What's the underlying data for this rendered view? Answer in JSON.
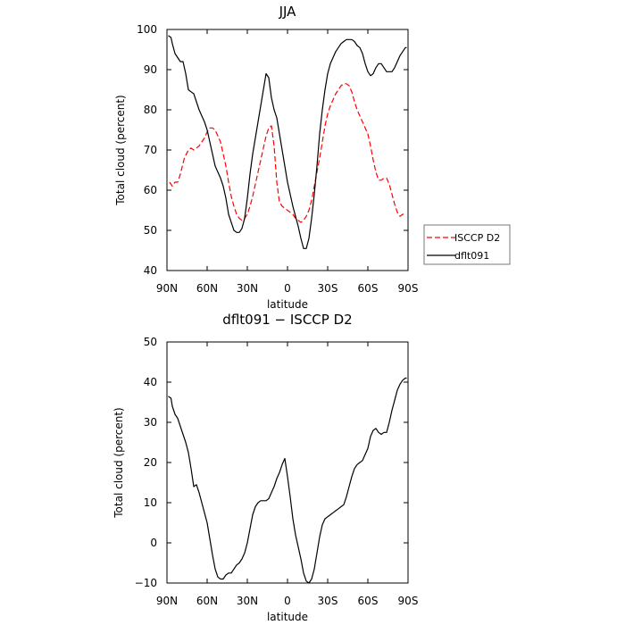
{
  "chart_data": [
    {
      "type": "line",
      "title": "JJA",
      "xlabel": "latitude",
      "ylabel": "Total cloud (percent)",
      "xlim": [
        90,
        -90
      ],
      "ylim": [
        40,
        100
      ],
      "xticks": [
        90,
        60,
        30,
        0,
        -30,
        -60,
        -90
      ],
      "xtick_labels": [
        "90N",
        "60N",
        "30N",
        "0",
        "30S",
        "60S",
        "90S"
      ],
      "yticks": [
        40,
        50,
        60,
        70,
        80,
        90,
        100
      ],
      "ytick_labels": [
        "40",
        "50",
        "60",
        "70",
        "80",
        "90",
        "100"
      ],
      "legend_position": "right",
      "series": [
        {
          "name": "ISCCP D2",
          "color": "#ff0000",
          "dash": "dashed",
          "x": [
            88,
            86,
            84,
            82,
            80,
            77,
            74,
            72,
            70,
            68,
            66,
            64,
            62,
            60,
            58,
            56,
            54,
            52,
            50,
            48,
            46,
            44,
            42,
            40,
            38,
            36,
            34,
            32,
            30,
            28,
            26,
            24,
            22,
            20,
            18,
            16,
            14,
            12,
            10,
            8,
            6,
            4,
            2,
            0,
            -2,
            -4,
            -6,
            -8,
            -10,
            -12,
            -14,
            -16,
            -18,
            -20,
            -22,
            -24,
            -26,
            -28,
            -30,
            -32,
            -34,
            -36,
            -38,
            -40,
            -42,
            -44,
            -46,
            -48,
            -50,
            -52,
            -54,
            -56,
            -58,
            -60,
            -62,
            -64,
            -66,
            -68,
            -70,
            -72,
            -74,
            -76,
            -78,
            -80,
            -82,
            -84,
            -86,
            -88
          ],
          "y": [
            62,
            61,
            62,
            62,
            64,
            68,
            70,
            70.5,
            70,
            70.5,
            71,
            72,
            73,
            74.5,
            75.5,
            75.5,
            75,
            73.5,
            72,
            69,
            66,
            62,
            58.5,
            56,
            54,
            53,
            52.5,
            53,
            54,
            56,
            58.5,
            61.5,
            64.5,
            67.5,
            70.5,
            73.5,
            75.5,
            76,
            71,
            62,
            57,
            56,
            55.5,
            55,
            54.5,
            54,
            53,
            52.5,
            52,
            52.5,
            53.5,
            55,
            57.5,
            61,
            64.5,
            68,
            72,
            76,
            79,
            81,
            82.5,
            84,
            85,
            86,
            86.5,
            86.5,
            86,
            84.5,
            82,
            80,
            78.5,
            77,
            75.5,
            74,
            71,
            67.5,
            64.5,
            62.5,
            62.5,
            63,
            63,
            61.5,
            59,
            56.5,
            54.5,
            53.5,
            54,
            54
          ]
        },
        {
          "name": "dflt091",
          "color": "#000000",
          "dash": "solid",
          "x": [
            89,
            87,
            86,
            84,
            82,
            80,
            78,
            76,
            74,
            72,
            70,
            68,
            66,
            64,
            62,
            60,
            58,
            56,
            54,
            52,
            50,
            48,
            46,
            44,
            42,
            40,
            38,
            36,
            34,
            32,
            30,
            28,
            26,
            24,
            22,
            20,
            18,
            16,
            14,
            12,
            10,
            8,
            6,
            4,
            2,
            0,
            -2,
            -4,
            -6,
            -8,
            -10,
            -12,
            -14,
            -16,
            -18,
            -20,
            -22,
            -24,
            -26,
            -28,
            -30,
            -32,
            -34,
            -36,
            -38,
            -40,
            -42,
            -44,
            -46,
            -48,
            -50,
            -52,
            -54,
            -56,
            -58,
            -60,
            -62,
            -64,
            -66,
            -68,
            -70,
            -72,
            -74,
            -76,
            -78,
            -80,
            -82,
            -84,
            -86,
            -88,
            -89
          ],
          "y": [
            98.5,
            98,
            96.5,
            94,
            93,
            92,
            92,
            89,
            85,
            84.5,
            84,
            82,
            80,
            78.5,
            77,
            75,
            72,
            69,
            66,
            64.5,
            63,
            61,
            58,
            54,
            52,
            50,
            49.5,
            49.5,
            50.5,
            53,
            58,
            64,
            69,
            73,
            77,
            81,
            85,
            89,
            88,
            83,
            80,
            78,
            74,
            70,
            66,
            62,
            59,
            56,
            53.5,
            51,
            48,
            45.5,
            45.5,
            48,
            53,
            59,
            66,
            74,
            80,
            85,
            89,
            91.5,
            93,
            94.5,
            95.5,
            96.5,
            97,
            97.5,
            97.5,
            97.5,
            97,
            96,
            95.5,
            94,
            91.5,
            89.5,
            88.5,
            89,
            90.5,
            91.5,
            91.5,
            90.5,
            89.5,
            89.5,
            89.5,
            90.5,
            92,
            93.5,
            94.5,
            95.5,
            95.5
          ]
        }
      ]
    },
    {
      "type": "line",
      "title": "dflt091 − ISCCP D2",
      "xlabel": "latitude",
      "ylabel": "Total cloud (percent)",
      "xlim": [
        90,
        -90
      ],
      "ylim": [
        -10,
        50
      ],
      "xticks": [
        90,
        60,
        30,
        0,
        -30,
        -60,
        -90
      ],
      "xtick_labels": [
        "90N",
        "60N",
        "30N",
        "0",
        "30S",
        "60S",
        "90S"
      ],
      "yticks": [
        -10,
        0,
        10,
        20,
        30,
        40,
        50
      ],
      "ytick_labels": [
        "−10",
        "0",
        "10",
        "20",
        "30",
        "40",
        "50"
      ],
      "series": [
        {
          "color": "#000000",
          "dash": "solid",
          "x": [
            89,
            87,
            86,
            84,
            82,
            80,
            78,
            76,
            74,
            72,
            70,
            68,
            66,
            64,
            62,
            60,
            58,
            56,
            54,
            52,
            50,
            48,
            46,
            44,
            42,
            40,
            38,
            36,
            34,
            32,
            30,
            28,
            26,
            24,
            22,
            20,
            18,
            16,
            14,
            12,
            10,
            8,
            6,
            4,
            2,
            0,
            -2,
            -4,
            -6,
            -8,
            -10,
            -12,
            -14,
            -16,
            -18,
            -20,
            -22,
            -24,
            -26,
            -28,
            -30,
            -32,
            -34,
            -36,
            -38,
            -40,
            -42,
            -44,
            -46,
            -48,
            -50,
            -52,
            -54,
            -56,
            -58,
            -60,
            -62,
            -64,
            -66,
            -68,
            -70,
            -72,
            -74,
            -76,
            -78,
            -80,
            -82,
            -84,
            -86,
            -88,
            -89
          ],
          "y": [
            36.5,
            36,
            34,
            32,
            31,
            29,
            27,
            25,
            22.5,
            18.5,
            14,
            14.5,
            12.5,
            10,
            7.5,
            5,
            1,
            -3,
            -6.5,
            -8.5,
            -9,
            -9,
            -8,
            -7.5,
            -7.5,
            -6.5,
            -5.5,
            -5,
            -4,
            -2.5,
            0,
            3.5,
            7,
            9,
            10,
            10.5,
            10.5,
            10.5,
            11,
            12.5,
            14,
            16,
            17.5,
            19.5,
            21,
            16.5,
            11.5,
            6,
            2,
            -1,
            -4,
            -7.5,
            -9.5,
            -10,
            -9,
            -6.5,
            -2.5,
            1.5,
            4.5,
            6,
            6.5,
            7,
            7.5,
            8,
            8.5,
            9,
            9.5,
            11.5,
            14,
            16.5,
            18.5,
            19.5,
            20,
            20.5,
            22,
            23.5,
            26.5,
            28,
            28.5,
            27.5,
            27,
            27.5,
            27.5,
            30,
            33,
            35.5,
            38,
            39.5,
            40.5,
            41,
            41
          ]
        }
      ]
    }
  ]
}
